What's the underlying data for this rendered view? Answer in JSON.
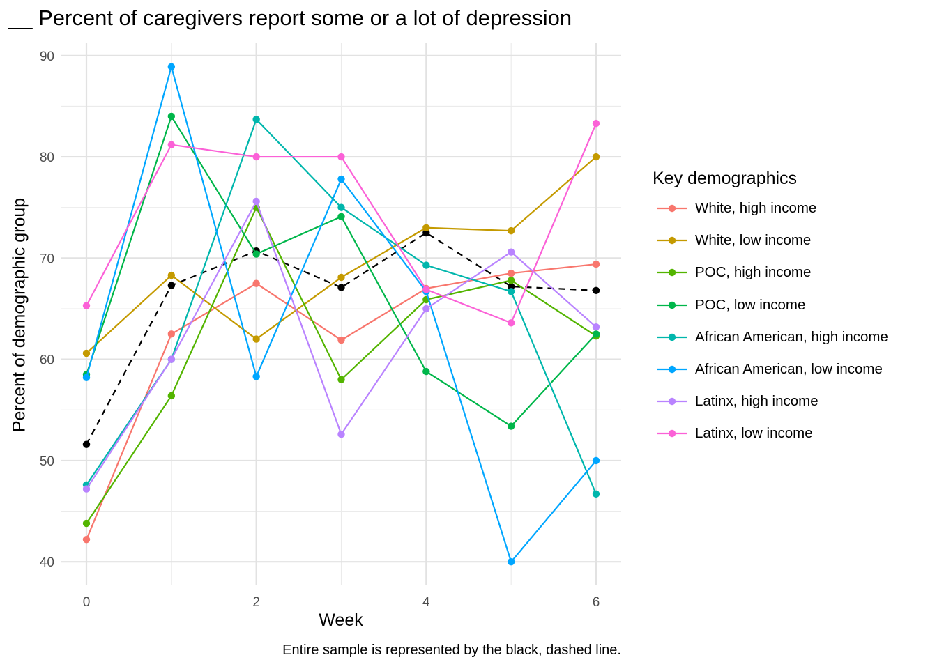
{
  "chart_data": {
    "type": "line",
    "title": "__ Percent of caregivers report some or a lot of depression",
    "xlabel": "Week",
    "ylabel": "Percent of demographic group",
    "caption": "Entire sample is represented by the black, dashed line.",
    "legend_title": "Key demographics",
    "legend_position": "right",
    "grid": true,
    "xlim": [
      0,
      6
    ],
    "ylim": [
      38.5,
      91.5
    ],
    "x": [
      0,
      1,
      2,
      3,
      4,
      5,
      6
    ],
    "x_ticks": [
      "0",
      "2",
      "4",
      "6"
    ],
    "y_ticks": [
      "40",
      "50",
      "60",
      "70",
      "80",
      "90"
    ],
    "series": [
      {
        "name": "White, high income",
        "color": "#F8766D",
        "values": [
          42.2,
          62.5,
          67.5,
          61.9,
          67.0,
          68.5,
          69.4
        ]
      },
      {
        "name": "White, low income",
        "color": "#C49A00",
        "values": [
          60.6,
          68.3,
          62.0,
          68.1,
          73.0,
          72.7,
          80.0
        ]
      },
      {
        "name": "POC, high income",
        "color": "#53B400",
        "values": [
          43.8,
          56.4,
          75.0,
          58.0,
          65.9,
          67.8,
          62.3
        ]
      },
      {
        "name": "POC, low income",
        "color": "#00B64A",
        "values": [
          58.5,
          84.0,
          70.4,
          74.1,
          58.8,
          53.4,
          62.5
        ]
      },
      {
        "name": "African American, high income",
        "color": "#00B6AC",
        "values": [
          47.6,
          60.0,
          83.7,
          75.0,
          69.3,
          66.7,
          46.7
        ]
      },
      {
        "name": "African American, low income",
        "color": "#00A6FF",
        "values": [
          58.2,
          88.9,
          58.3,
          77.8,
          66.7,
          40.0,
          50.0
        ]
      },
      {
        "name": "Latinx, high income",
        "color": "#B983FF",
        "values": [
          47.2,
          60.0,
          75.6,
          52.6,
          65.0,
          70.6,
          63.2
        ]
      },
      {
        "name": "Latinx, low income",
        "color": "#FB61D7",
        "values": [
          65.3,
          81.2,
          80.0,
          80.0,
          66.9,
          63.6,
          83.3
        ]
      }
    ],
    "overall": {
      "color": "#000000",
      "dashed": true,
      "values": [
        51.6,
        67.3,
        70.7,
        67.1,
        72.5,
        67.2,
        66.8
      ]
    }
  }
}
